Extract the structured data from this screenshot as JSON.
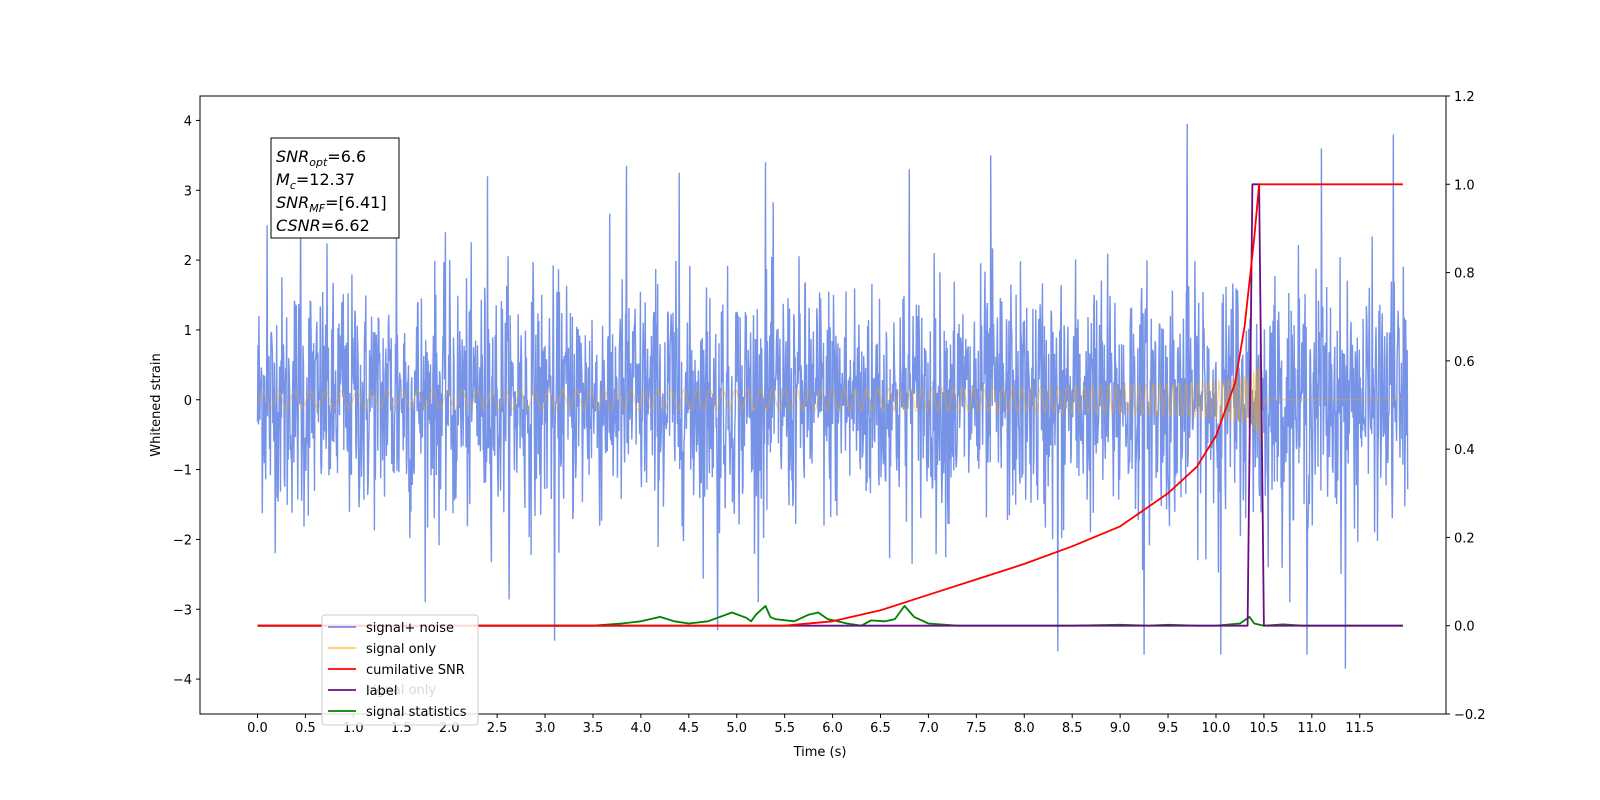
{
  "chart_data": {
    "type": "line",
    "title": "",
    "xlabel": "Time (s)",
    "ylabel": "Whitened strain",
    "xlim": [
      -0.6,
      12.4
    ],
    "ylim": [
      -4.5,
      4.35
    ],
    "y2lim": [
      -0.2,
      1.2
    ],
    "x_ticks": [
      0.0,
      0.5,
      1.0,
      1.5,
      2.0,
      2.5,
      3.0,
      3.5,
      4.0,
      4.5,
      5.0,
      5.5,
      6.0,
      6.5,
      7.0,
      7.5,
      8.0,
      8.5,
      9.0,
      9.5,
      10.0,
      10.5,
      11.0,
      11.5
    ],
    "x_tick_labels": [
      "0.0",
      "0.5",
      "1.0",
      "1.5",
      "2.0",
      "2.5",
      "3.0",
      "3.5",
      "4.0",
      "4.5",
      "5.0",
      "5.5",
      "6.0",
      "6.5",
      "7.0",
      "7.5",
      "8.0",
      "8.5",
      "9.0",
      "9.5",
      "10.0",
      "10.5",
      "11.0",
      "11.5"
    ],
    "y_ticks": [
      4,
      3,
      2,
      1,
      0,
      -1,
      -2,
      -3,
      -4
    ],
    "y_tick_labels": [
      "4",
      "3",
      "2",
      "1",
      "0",
      "−1",
      "−2",
      "−3",
      "−4"
    ],
    "y2_ticks": [
      1.2,
      1.0,
      0.8,
      0.6,
      0.4,
      0.2,
      0.0,
      -0.2
    ],
    "y2_tick_labels": [
      "1.2",
      "1.0",
      "0.8",
      "0.6",
      "0.4",
      "0.2",
      "0.0",
      "−0.2"
    ],
    "grid": false,
    "legend_position": "lower-left",
    "annotation": {
      "lines": [
        {
          "var": "SNR",
          "sub": "opt",
          "value": "=6.6"
        },
        {
          "var": "M",
          "sub": "c",
          "value": "=12.37"
        },
        {
          "var": "SNR",
          "sub": "MF",
          "value": "=[6.41]"
        },
        {
          "var": "CSNR",
          "sub": "",
          "value": "=6.62"
        }
      ]
    },
    "series": [
      {
        "name": "signal+ noise",
        "axis": "left",
        "color": "#6f8de6",
        "noise_sigma": 1.0,
        "x_range": [
          0.0,
          12.0
        ],
        "spikes": [
          {
            "x": 0.1,
            "y": 2.5
          },
          {
            "x": 0.45,
            "y": 2.9
          },
          {
            "x": 1.45,
            "y": 3.0
          },
          {
            "x": 2.4,
            "y": 3.2
          },
          {
            "x": 3.1,
            "y": -3.45
          },
          {
            "x": 3.85,
            "y": 3.35
          },
          {
            "x": 4.4,
            "y": 3.25
          },
          {
            "x": 4.8,
            "y": -3.3
          },
          {
            "x": 5.3,
            "y": 3.4
          },
          {
            "x": 6.8,
            "y": 3.3
          },
          {
            "x": 7.65,
            "y": 3.5
          },
          {
            "x": 8.35,
            "y": -3.6
          },
          {
            "x": 9.25,
            "y": -3.65
          },
          {
            "x": 9.7,
            "y": 3.95
          },
          {
            "x": 10.05,
            "y": -3.65
          },
          {
            "x": 10.95,
            "y": -3.65
          },
          {
            "x": 11.1,
            "y": 3.6
          },
          {
            "x": 11.35,
            "y": -3.85
          },
          {
            "x": 11.85,
            "y": 3.8
          }
        ]
      },
      {
        "name": "signal only",
        "axis": "left",
        "color": "#ffa500",
        "chirp": {
          "t_merge": 10.48,
          "t_end": 10.52,
          "peak_amplitude": 0.9,
          "start_frequency_hz": 6,
          "chirp_mass": 12.37
        }
      },
      {
        "name": "cumilative SNR",
        "axis": "right",
        "color": "#ff0000",
        "x": [
          0.0,
          5.5,
          6.0,
          6.5,
          7.0,
          7.5,
          8.0,
          8.5,
          9.0,
          9.5,
          9.8,
          10.0,
          10.2,
          10.3,
          10.4,
          10.45,
          11.95
        ],
        "values": [
          0.0,
          0.0,
          0.01,
          0.035,
          0.07,
          0.105,
          0.14,
          0.18,
          0.225,
          0.3,
          0.36,
          0.43,
          0.55,
          0.68,
          0.88,
          1.0,
          1.0
        ]
      },
      {
        "name": "label",
        "axis": "right",
        "color": "#6a0d83",
        "x": [
          0.0,
          10.33,
          10.38,
          10.45,
          10.5,
          11.95
        ],
        "values": [
          0.0,
          0.0,
          1.0,
          1.0,
          0.0,
          0.0
        ]
      },
      {
        "name": "signal statistics",
        "axis": "right",
        "color": "#008000",
        "x": [
          0.0,
          3.5,
          3.8,
          4.0,
          4.2,
          4.35,
          4.5,
          4.7,
          4.95,
          5.1,
          5.15,
          5.2,
          5.3,
          5.35,
          5.4,
          5.6,
          5.75,
          5.85,
          5.95,
          6.05,
          6.15,
          6.3,
          6.4,
          6.55,
          6.65,
          6.75,
          6.85,
          7.0,
          7.3,
          7.6,
          8.0,
          8.5,
          9.0,
          9.3,
          9.5,
          9.8,
          10.0,
          10.25,
          10.35,
          10.4,
          10.5,
          10.7,
          10.9,
          11.95
        ],
        "values": [
          0.0,
          0.0,
          0.005,
          0.01,
          0.02,
          0.01,
          0.005,
          0.01,
          0.03,
          0.018,
          0.01,
          0.025,
          0.045,
          0.02,
          0.015,
          0.01,
          0.025,
          0.03,
          0.015,
          0.01,
          0.005,
          0.0,
          0.012,
          0.01,
          0.015,
          0.045,
          0.02,
          0.005,
          0.0,
          0.0,
          0.0,
          0.0,
          0.002,
          0.0,
          0.002,
          0.0,
          0.0,
          0.005,
          0.02,
          0.005,
          0.0,
          0.003,
          0.0,
          0.0
        ]
      }
    ]
  },
  "legend": [
    {
      "label": "signal+ noise",
      "color": "#6f8de6"
    },
    {
      "label": "signal only",
      "color": "#ffcc66"
    },
    {
      "label": "cumilative SNR",
      "color": "#ff0000"
    },
    {
      "label": "label",
      "color": "#6a0d83"
    },
    {
      "label": "signal statistics",
      "color": "#008000"
    }
  ],
  "ghost_legend_text": "signal only"
}
